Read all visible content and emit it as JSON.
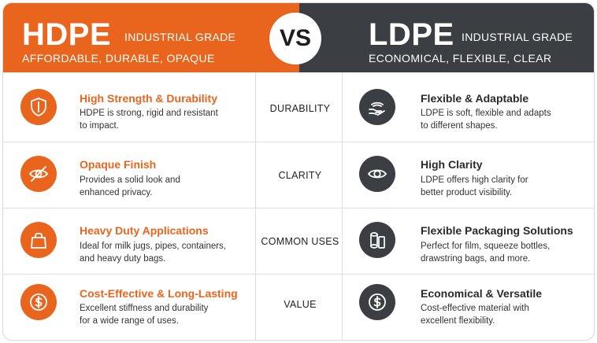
{
  "header": {
    "left": {
      "name": "HDPE",
      "grade": "INDUSTRIAL GRADE",
      "tagline": "AFFORDABLE, DURABLE, OPAQUE"
    },
    "vs": "VS",
    "right": {
      "name": "LDPE",
      "grade": "INDUSTRIAL GRADE",
      "tagline": "ECONOMICAL, FLEXIBLE, CLEAR"
    }
  },
  "rows": [
    {
      "category": "DURABILITY",
      "hdpe": {
        "title": "High Strength & Durability",
        "desc1": "HDPE is strong, rigid and resistant",
        "desc2": "to impact.",
        "icon": "shield-icon"
      },
      "ldpe": {
        "title": "Flexible & Adaptable",
        "desc1": "LDPE is soft, flexible and adapts",
        "desc2": "to different shapes.",
        "icon": "hand-icon"
      }
    },
    {
      "category": "CLARITY",
      "hdpe": {
        "title": "Opaque Finish",
        "desc1": "Provides a solid look and",
        "desc2": "enhanced privacy.",
        "icon": "eye-slash-icon"
      },
      "ldpe": {
        "title": "High Clarity",
        "desc1": "LDPE offers high clarity for",
        "desc2": "better product visibility.",
        "icon": "eye-icon"
      }
    },
    {
      "category": "COMMON USES",
      "hdpe": {
        "title": "Heavy Duty Applications",
        "desc1": "Ideal for milk jugs, pipes, containers,",
        "desc2": "and heavy duty bags.",
        "icon": "bag-icon"
      },
      "ldpe": {
        "title": "Flexible Packaging Solutions",
        "desc1": "Perfect for film, squeeze bottles,",
        "desc2": "drawstring bags, and more.",
        "icon": "film-roll-icon"
      }
    },
    {
      "category": "VALUE",
      "hdpe": {
        "title": "Cost-Effective & Long-Lasting",
        "desc1": "Excellent stiffness and durability",
        "desc2": "for a wide range of uses.",
        "icon": "dollar-icon"
      },
      "ldpe": {
        "title": "Economical & Versatile",
        "desc1": "Cost-effective material with",
        "desc2": "excellent flexibility.",
        "icon": "dollar-icon"
      }
    }
  ],
  "colors": {
    "hdpe_accent": "#e9651e",
    "ldpe_accent": "#3b3e43"
  }
}
